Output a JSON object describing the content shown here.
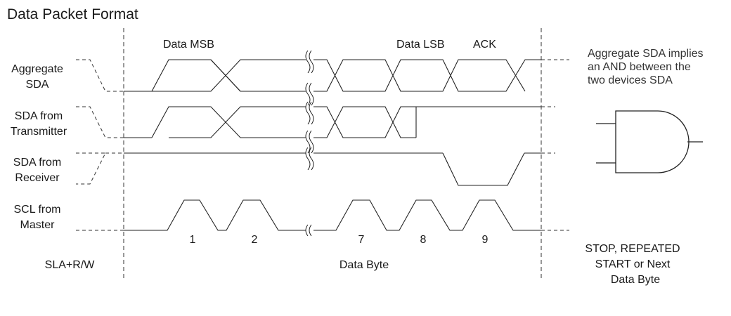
{
  "title": "Data Packet Format",
  "signals": {
    "aggregate_sda": [
      "Aggregate",
      "SDA"
    ],
    "sda_transmitter": [
      "SDA from",
      "Transmitter"
    ],
    "sda_receiver": [
      "SDA from",
      "Receiver"
    ],
    "scl_master": [
      "SCL from",
      "Master"
    ]
  },
  "bit_labels": {
    "msb": "Data MSB",
    "lsb": "Data LSB",
    "ack": "ACK"
  },
  "clock_numbers": [
    "1",
    "2",
    "7",
    "8",
    "9"
  ],
  "sections": {
    "left": "SLA+R/W",
    "middle": "Data Byte",
    "right": [
      "STOP, REPEATED",
      "START or Next",
      "Data Byte"
    ]
  },
  "note": [
    "Aggregate SDA implies",
    "an AND between the",
    "two devices SDA"
  ]
}
